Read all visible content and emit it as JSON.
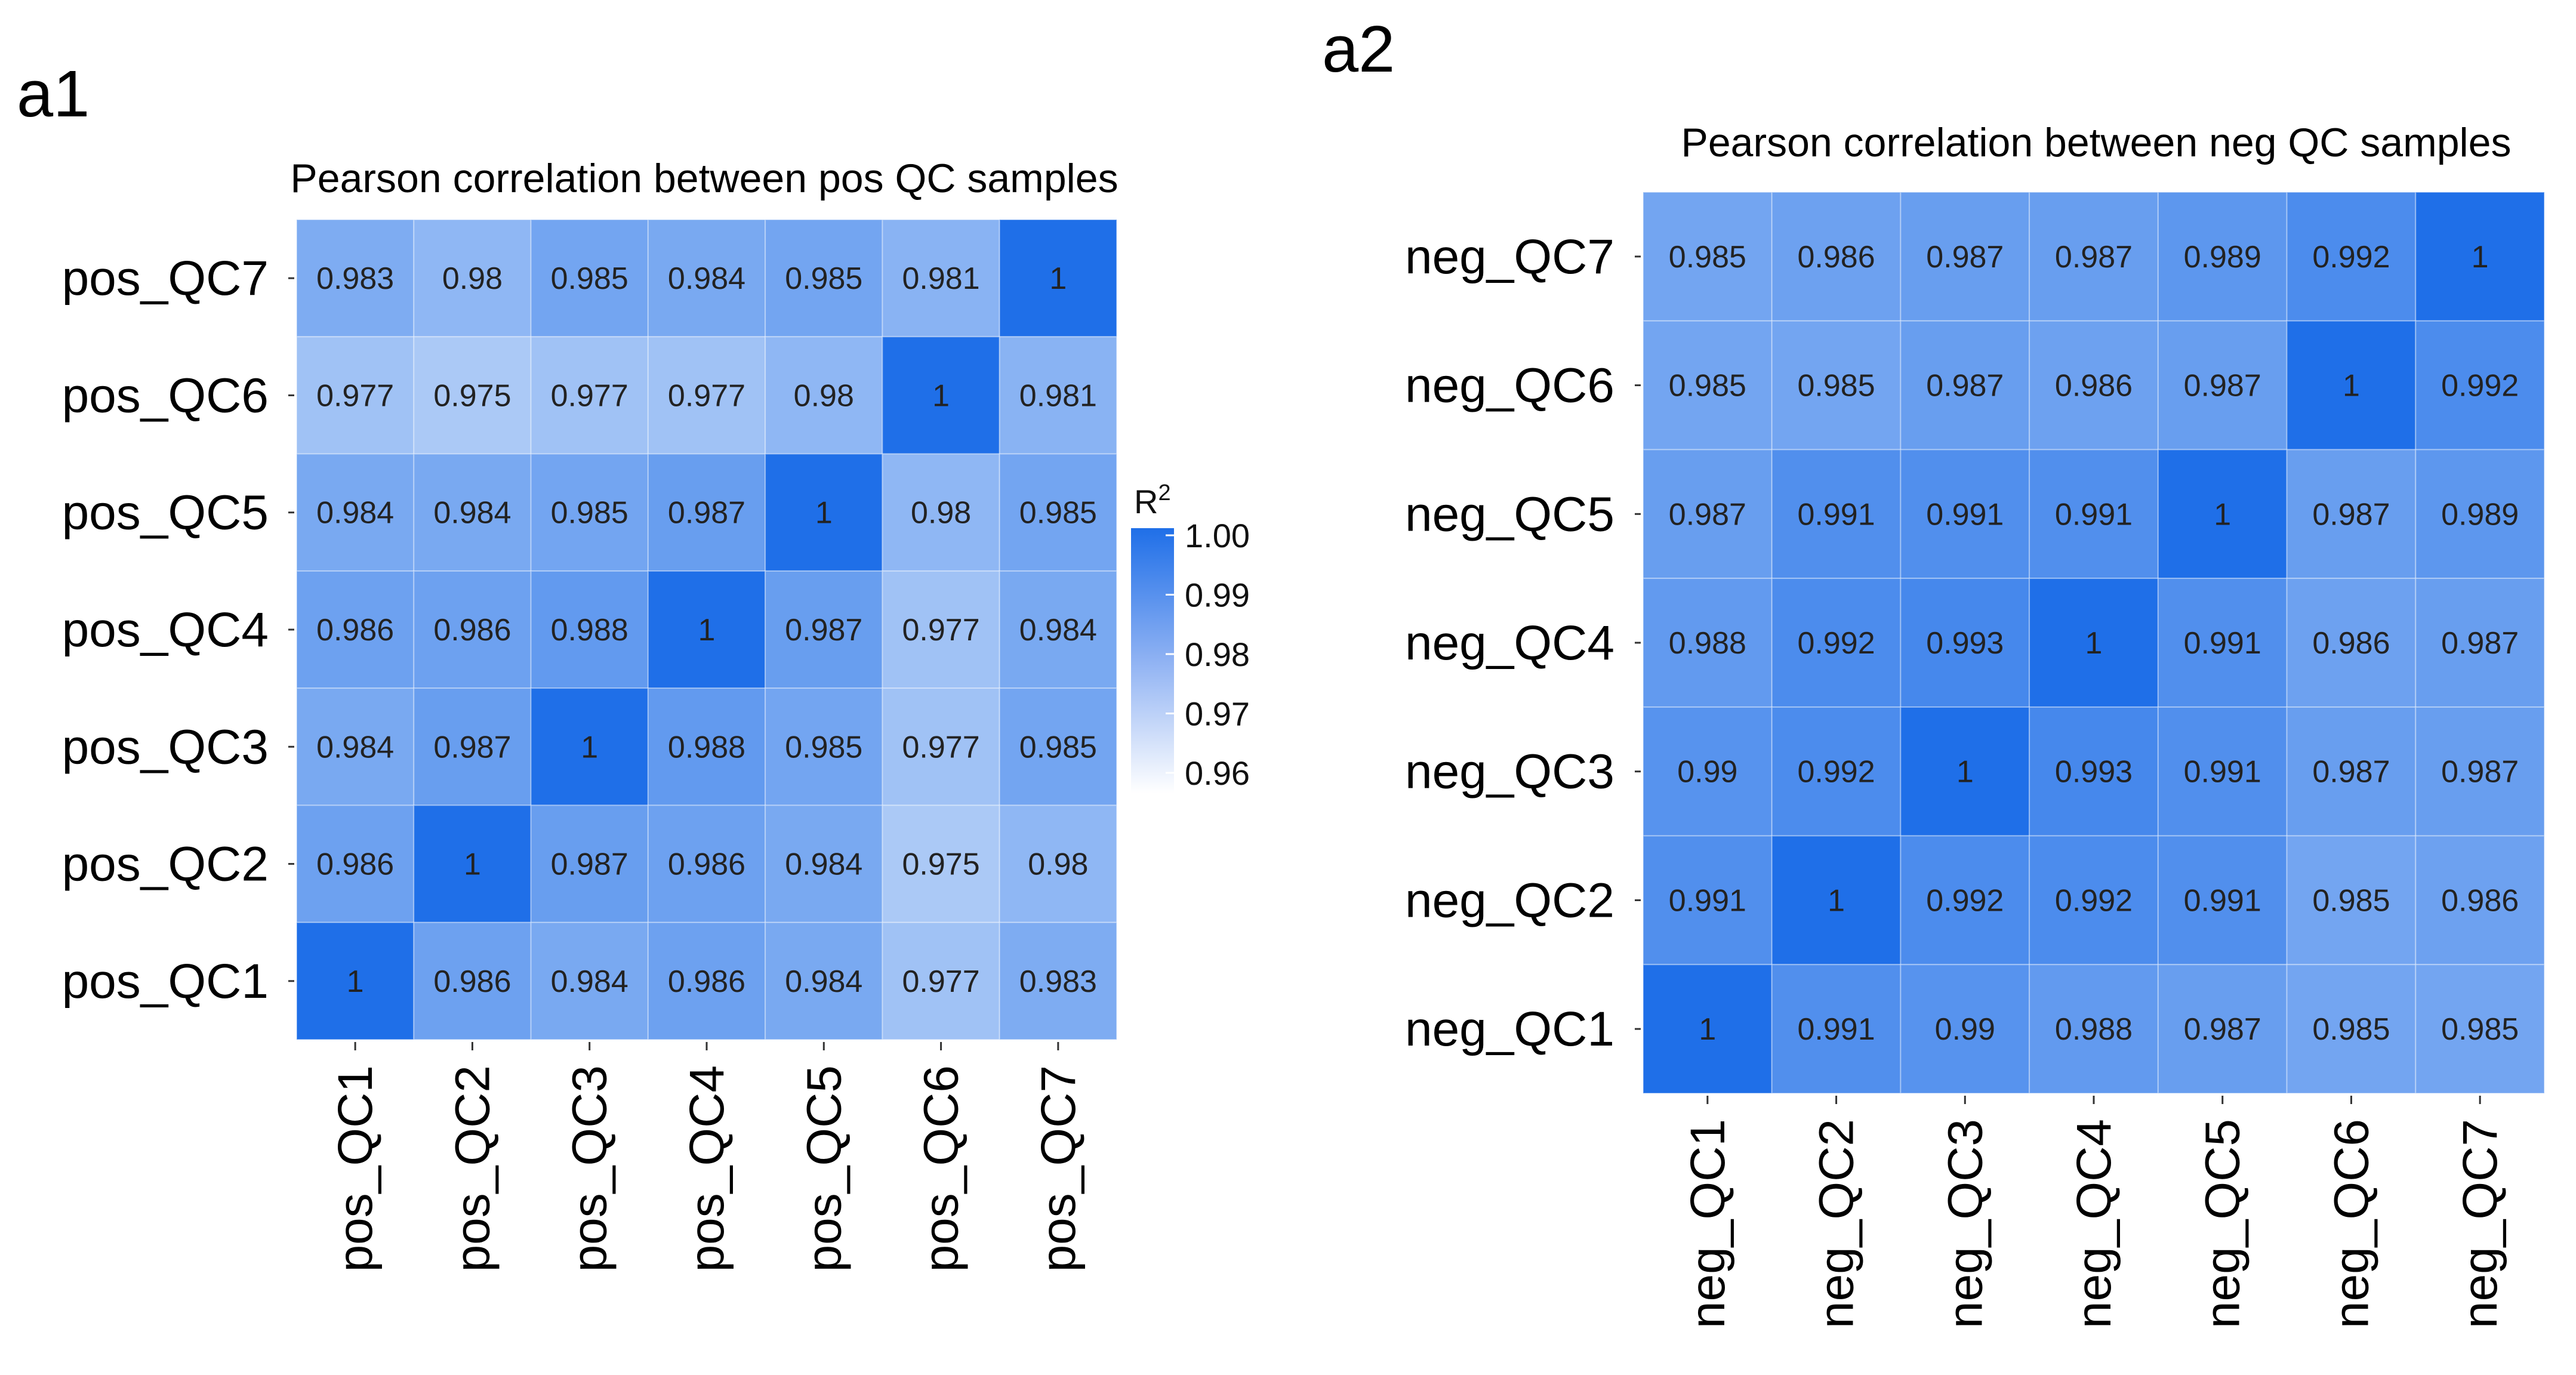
{
  "chart_data": [
    {
      "type": "heatmap",
      "panel_label": "a1",
      "title": "Pearson correlation between pos QC samples",
      "xlabel": "",
      "ylabel": "",
      "x_labels": [
        "pos_QC1",
        "pos_QC2",
        "pos_QC3",
        "pos_QC4",
        "pos_QC5",
        "pos_QC6",
        "pos_QC7"
      ],
      "y_labels_top_to_bottom": [
        "pos_QC7",
        "pos_QC6",
        "pos_QC5",
        "pos_QC4",
        "pos_QC3",
        "pos_QC2",
        "pos_QC1"
      ],
      "values_text": [
        [
          "0.983",
          "0.98",
          "0.985",
          "0.984",
          "0.985",
          "0.981",
          "1"
        ],
        [
          "0.977",
          "0.975",
          "0.977",
          "0.977",
          "0.98",
          "1",
          "0.981"
        ],
        [
          "0.984",
          "0.984",
          "0.985",
          "0.987",
          "1",
          "0.98",
          "0.985"
        ],
        [
          "0.986",
          "0.986",
          "0.988",
          "1",
          "0.987",
          "0.977",
          "0.984"
        ],
        [
          "0.984",
          "0.987",
          "1",
          "0.988",
          "0.985",
          "0.977",
          "0.985"
        ],
        [
          "0.986",
          "1",
          "0.987",
          "0.986",
          "0.984",
          "0.975",
          "0.98"
        ],
        [
          "1",
          "0.986",
          "0.984",
          "0.986",
          "0.984",
          "0.977",
          "0.983"
        ]
      ],
      "color_range": [
        0.96,
        1.0
      ],
      "legend": {
        "title_base": "R",
        "title_sup": "2",
        "ticks": [
          "1.00",
          "0.99",
          "0.98",
          "0.97",
          "0.96"
        ],
        "placement": "right"
      },
      "colors": {
        "low": "#ffffff",
        "high": "#1f6fe8"
      }
    },
    {
      "type": "heatmap",
      "panel_label": "a2",
      "title": "Pearson correlation between neg QC samples",
      "xlabel": "",
      "ylabel": "",
      "x_labels": [
        "neg_QC1",
        "neg_QC2",
        "neg_QC3",
        "neg_QC4",
        "neg_QC5",
        "neg_QC6",
        "neg_QC7"
      ],
      "y_labels_top_to_bottom": [
        "neg_QC7",
        "neg_QC6",
        "neg_QC5",
        "neg_QC4",
        "neg_QC3",
        "neg_QC2",
        "neg_QC1"
      ],
      "values_text": [
        [
          "0.985",
          "0.986",
          "0.987",
          "0.987",
          "0.989",
          "0.992",
          "1"
        ],
        [
          "0.985",
          "0.985",
          "0.987",
          "0.986",
          "0.987",
          "1",
          "0.992"
        ],
        [
          "0.987",
          "0.991",
          "0.991",
          "0.991",
          "1",
          "0.987",
          "0.989"
        ],
        [
          "0.988",
          "0.992",
          "0.993",
          "1",
          "0.991",
          "0.986",
          "0.987"
        ],
        [
          "0.99",
          "0.992",
          "1",
          "0.993",
          "0.991",
          "0.987",
          "0.987"
        ],
        [
          "0.991",
          "1",
          "0.992",
          "0.992",
          "0.991",
          "0.985",
          "0.986"
        ],
        [
          "1",
          "0.991",
          "0.99",
          "0.988",
          "0.987",
          "0.985",
          "0.985"
        ]
      ],
      "color_range": [
        0.96,
        1.0
      ],
      "legend": null,
      "colors": {
        "low": "#ffffff",
        "high": "#1f6fe8"
      }
    }
  ]
}
